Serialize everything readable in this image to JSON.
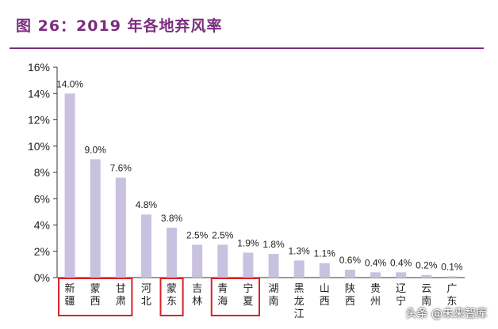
{
  "header": {
    "title": "图 26：2019 年各地弃风率"
  },
  "watermark": "头条 @未来智库",
  "colors": {
    "bar": "#c9c1e0",
    "title": "#7b2d7f",
    "highlight": "#d9222a",
    "axis": "#333333"
  },
  "chart_data": {
    "type": "bar",
    "title": "2019 年各地弃风率",
    "xlabel": "",
    "ylabel": "",
    "categories": [
      "新疆",
      "蒙西",
      "甘肃",
      "河北",
      "蒙东",
      "吉林",
      "青海",
      "宁夏",
      "湖南",
      "黑龙江",
      "山西",
      "陕西",
      "贵州",
      "辽宁",
      "云南",
      "广东"
    ],
    "values": [
      14.0,
      9.0,
      7.6,
      4.8,
      3.8,
      2.5,
      2.5,
      1.9,
      1.8,
      1.3,
      1.1,
      0.6,
      0.4,
      0.4,
      0.2,
      0.1
    ],
    "data_labels": [
      "14.0%",
      "9.0%",
      "7.6%",
      "4.8%",
      "3.8%",
      "2.5%",
      "2.5%",
      "1.9%",
      "1.8%",
      "1.3%",
      "1.1%",
      "0.6%",
      "0.4%",
      "0.4%",
      "0.2%",
      "0.1%"
    ],
    "yticks": [
      0,
      2,
      4,
      6,
      8,
      10,
      12,
      14,
      16
    ],
    "ytick_labels": [
      "0%",
      "2%",
      "4%",
      "6%",
      "8%",
      "10%",
      "12%",
      "14%",
      "16%"
    ],
    "ylim": [
      0,
      16
    ],
    "highlight_groups": [
      [
        0,
        2
      ],
      [
        4,
        4
      ],
      [
        6,
        7
      ]
    ],
    "grid": false
  }
}
